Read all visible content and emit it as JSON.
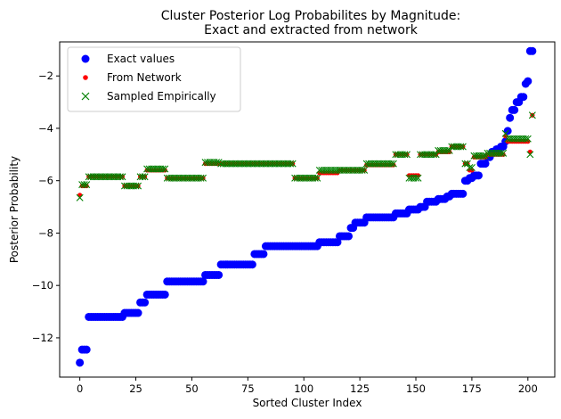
{
  "chart_data": {
    "type": "scatter",
    "title_lines": [
      "Cluster Posterior Log Probabilites by Magnitude:",
      "Exact and extracted from network"
    ],
    "xlabel": "Sorted Cluster Index",
    "ylabel": "Posterior Probability",
    "xlim": [
      -9,
      212
    ],
    "ylim": [
      -13.5,
      -0.7
    ],
    "xticks": [
      0,
      25,
      50,
      75,
      100,
      125,
      150,
      175,
      200
    ],
    "yticks": [
      -12,
      -10,
      -8,
      -6,
      -4,
      -2
    ],
    "grid": false,
    "legend_position": "upper-left",
    "x": "0..202 (index i)",
    "series": [
      {
        "name": "Exact values",
        "marker": "circle",
        "color": "#0000ff",
        "steps": [
          [
            0,
            0,
            -12.95
          ],
          [
            1,
            3,
            -12.45
          ],
          [
            4,
            19,
            -11.2
          ],
          [
            20,
            26,
            -11.05
          ],
          [
            27,
            29,
            -10.65
          ],
          [
            30,
            38,
            -10.35
          ],
          [
            39,
            55,
            -9.85
          ],
          [
            56,
            62,
            -9.6
          ],
          [
            63,
            77,
            -9.2
          ],
          [
            78,
            82,
            -8.8
          ],
          [
            83,
            106,
            -8.5
          ],
          [
            107,
            115,
            -8.35
          ],
          [
            116,
            120,
            -8.12
          ],
          [
            121,
            122,
            -7.8
          ],
          [
            123,
            127,
            -7.6
          ],
          [
            128,
            140,
            -7.4
          ],
          [
            141,
            146,
            -7.25
          ],
          [
            147,
            151,
            -7.1
          ],
          [
            152,
            154,
            -7.0
          ],
          [
            155,
            159,
            -6.8
          ],
          [
            160,
            163,
            -6.7
          ],
          [
            164,
            165,
            -6.6
          ],
          [
            166,
            171,
            -6.5
          ],
          [
            172,
            173,
            -6.0
          ],
          [
            174,
            175,
            -5.9
          ],
          [
            176,
            178,
            -5.8
          ],
          [
            179,
            181,
            -5.35
          ],
          [
            182,
            183,
            -5.1
          ],
          [
            184,
            185,
            -4.9
          ],
          [
            186,
            187,
            -4.8
          ],
          [
            188,
            189,
            -4.7
          ],
          [
            190,
            190,
            -4.5
          ],
          [
            191,
            191,
            -4.1
          ],
          [
            192,
            192,
            -3.6
          ],
          [
            193,
            194,
            -3.3
          ],
          [
            195,
            196,
            -3.0
          ],
          [
            197,
            198,
            -2.8
          ],
          [
            199,
            199,
            -2.3
          ],
          [
            200,
            200,
            -2.2
          ],
          [
            201,
            202,
            -1.05
          ]
        ]
      },
      {
        "name": "From Network",
        "marker": "dot",
        "color": "#ff0000",
        "steps": [
          [
            0,
            0,
            -6.55
          ],
          [
            1,
            3,
            -6.2
          ],
          [
            4,
            19,
            -5.85
          ],
          [
            20,
            26,
            -6.2
          ],
          [
            27,
            29,
            -5.85
          ],
          [
            30,
            38,
            -5.6
          ],
          [
            39,
            55,
            -5.9
          ],
          [
            56,
            62,
            -5.35
          ],
          [
            63,
            77,
            -5.35
          ],
          [
            78,
            82,
            -5.35
          ],
          [
            83,
            95,
            -5.35
          ],
          [
            96,
            106,
            -5.9
          ],
          [
            107,
            115,
            -5.7
          ],
          [
            116,
            120,
            -5.6
          ],
          [
            121,
            127,
            -5.6
          ],
          [
            128,
            140,
            -5.4
          ],
          [
            141,
            146,
            -5.0
          ],
          [
            147,
            151,
            -5.8
          ],
          [
            152,
            154,
            -5.0
          ],
          [
            155,
            159,
            -5.0
          ],
          [
            160,
            165,
            -4.9
          ],
          [
            166,
            171,
            -4.7
          ],
          [
            172,
            173,
            -5.35
          ],
          [
            174,
            175,
            -5.6
          ],
          [
            176,
            181,
            -5.1
          ],
          [
            182,
            189,
            -5.0
          ],
          [
            190,
            190,
            -4.3
          ],
          [
            191,
            194,
            -4.5
          ],
          [
            195,
            200,
            -4.5
          ],
          [
            201,
            201,
            -4.9
          ],
          [
            202,
            202,
            -3.5
          ]
        ]
      },
      {
        "name": "Sampled Empirically",
        "marker": "x",
        "color": "#008000",
        "steps": [
          [
            0,
            0,
            -6.65
          ],
          [
            1,
            3,
            -6.15
          ],
          [
            4,
            19,
            -5.85
          ],
          [
            20,
            26,
            -6.2
          ],
          [
            27,
            29,
            -5.85
          ],
          [
            30,
            38,
            -5.55
          ],
          [
            39,
            55,
            -5.9
          ],
          [
            56,
            62,
            -5.3
          ],
          [
            63,
            77,
            -5.35
          ],
          [
            78,
            82,
            -5.35
          ],
          [
            83,
            95,
            -5.35
          ],
          [
            96,
            106,
            -5.9
          ],
          [
            107,
            115,
            -5.6
          ],
          [
            116,
            120,
            -5.6
          ],
          [
            121,
            127,
            -5.6
          ],
          [
            128,
            140,
            -5.35
          ],
          [
            141,
            146,
            -5.0
          ],
          [
            147,
            151,
            -5.9
          ],
          [
            152,
            154,
            -5.0
          ],
          [
            155,
            159,
            -5.0
          ],
          [
            160,
            165,
            -4.85
          ],
          [
            166,
            171,
            -4.7
          ],
          [
            172,
            173,
            -5.35
          ],
          [
            174,
            175,
            -5.5
          ],
          [
            176,
            181,
            -5.05
          ],
          [
            182,
            189,
            -4.95
          ],
          [
            190,
            190,
            -4.2
          ],
          [
            191,
            194,
            -4.4
          ],
          [
            195,
            200,
            -4.4
          ],
          [
            201,
            201,
            -5.0
          ],
          [
            202,
            202,
            -3.5
          ]
        ]
      }
    ]
  }
}
